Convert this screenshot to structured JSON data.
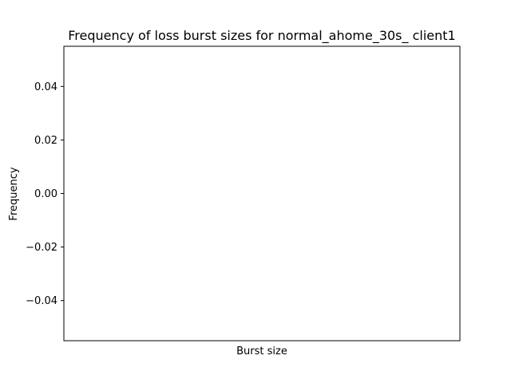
{
  "chart_data": {
    "type": "bar",
    "title": "Frequency of loss burst sizes for normal_ahome_30s_ client1",
    "xlabel": "Burst size",
    "ylabel": "Frequency",
    "ylim": [
      -0.055,
      0.055
    ],
    "yticks": [
      {
        "value": 0.04,
        "label": "0.04"
      },
      {
        "value": 0.02,
        "label": "0.02"
      },
      {
        "value": 0.0,
        "label": "0.00"
      },
      {
        "value": -0.02,
        "label": "−0.02"
      },
      {
        "value": -0.04,
        "label": "−0.04"
      }
    ],
    "categories": [],
    "values": [],
    "grid": false
  }
}
